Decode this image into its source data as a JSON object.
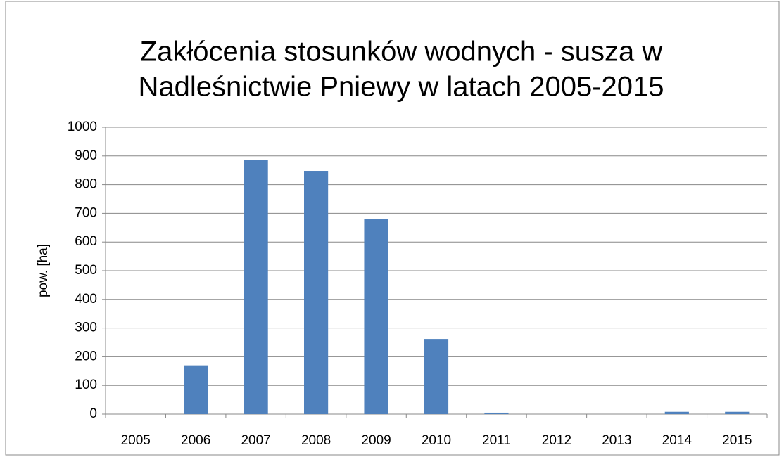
{
  "chart_data": {
    "type": "bar",
    "title": [
      "Zakłócenia stosunków wodnych - susza w",
      "Nadleśnictwie Pniewy w latach 2005-2015"
    ],
    "y_label": "pow. [ha]",
    "categories": [
      "2005",
      "2006",
      "2007",
      "2008",
      "2009",
      "2010",
      "2011",
      "2012",
      "2013",
      "2014",
      "2015"
    ],
    "values": [
      0,
      170,
      885,
      848,
      679,
      262,
      5,
      0,
      0,
      8,
      8
    ],
    "color": "#4f81bd",
    "ylim": [
      0,
      1000
    ],
    "yticks": [
      0,
      100,
      200,
      300,
      400,
      500,
      600,
      700,
      800,
      900,
      1000
    ],
    "grid": true
  }
}
